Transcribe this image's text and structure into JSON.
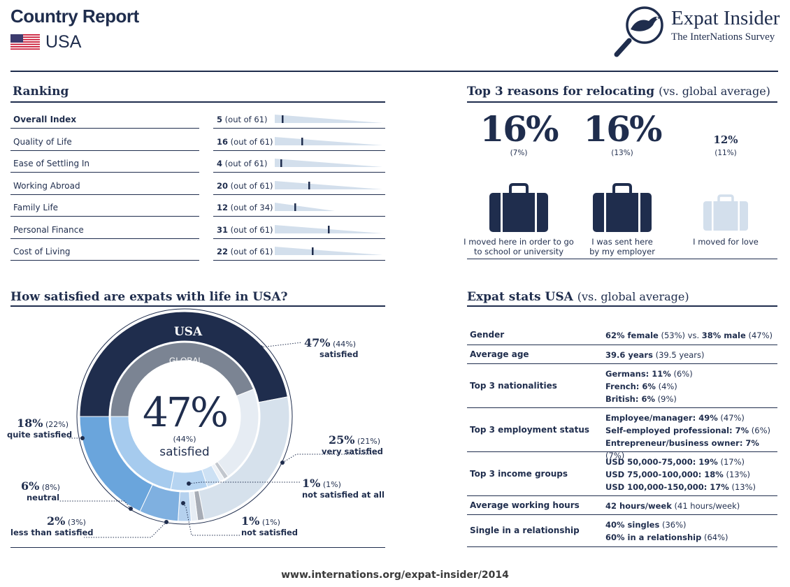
{
  "header": {
    "title": "Country Report",
    "country": "USA",
    "brand_title": "Expat Insider",
    "brand_subtitle": "The InterNations Survey"
  },
  "ranking": {
    "title": "Ranking",
    "rows": [
      {
        "label": "Overall Index",
        "rank": "5",
        "total_text": "(out of 61)",
        "rank_num": 5,
        "total": 61,
        "bold": true
      },
      {
        "label": "Quality of Life",
        "rank": "16",
        "total_text": "(out of 61)",
        "rank_num": 16,
        "total": 61
      },
      {
        "label": "Ease of Settling In",
        "rank": "4",
        "total_text": "(out of 61)",
        "rank_num": 4,
        "total": 61
      },
      {
        "label": "Working Abroad",
        "rank": "20",
        "total_text": "(out of 61)",
        "rank_num": 20,
        "total": 61
      },
      {
        "label": "Family Life",
        "rank": "12",
        "total_text": "(out of 34)",
        "rank_num": 12,
        "total": 34
      },
      {
        "label": "Personal Finance",
        "rank": "31",
        "total_text": "(out of 61)",
        "rank_num": 31,
        "total": 61
      },
      {
        "label": "Cost of Living",
        "rank": "22",
        "total_text": "(out of 61)",
        "rank_num": 22,
        "total": 61
      }
    ]
  },
  "reasons": {
    "title": "Top 3 reasons for relocating",
    "title_sub": "(vs. global average)",
    "items": [
      {
        "pct": "16%",
        "avg": "(7%)",
        "label_1": "I moved here in order to go",
        "label_2": "to school or university",
        "color": "#1f2d4d"
      },
      {
        "pct": "16%",
        "avg": "(13%)",
        "label_1": "I was sent here",
        "label_2": "by my employer",
        "color": "#1f2d4d"
      },
      {
        "pct": "12%",
        "avg": "(11%)",
        "label_1": "I moved for love",
        "label_2": "",
        "color": "#d3dfec"
      }
    ]
  },
  "satisfaction": {
    "title": "How satisfied are expats with life in USA?",
    "ring_outer_label": "USA",
    "ring_inner_label": "GLOBAL",
    "center_pct": "47%",
    "center_avg": "(44%)",
    "center_label": "satisfied",
    "labels": {
      "satisfied": {
        "pct": "47%",
        "avg": "(44%)",
        "name": "satisfied"
      },
      "very_satisfied": {
        "pct": "25%",
        "avg": "(21%)",
        "name": "very satisfied"
      },
      "not_at_all": {
        "pct": "1%",
        "avg": "(1%)",
        "name": "not satisfied at all"
      },
      "not_satisfied": {
        "pct": "1%",
        "avg": "(1%)",
        "name": "not satisfied"
      },
      "less_than": {
        "pct": "2%",
        "avg": "(3%)",
        "name": "less than satisfied"
      },
      "neutral": {
        "pct": "6%",
        "avg": "(8%)",
        "name": "neutral"
      },
      "quite": {
        "pct": "18%",
        "avg": "(22%)",
        "name": "quite satisfied"
      }
    }
  },
  "chart_data": {
    "type": "pie",
    "title": "How satisfied are expats with life in USA?",
    "categories": [
      "satisfied",
      "very satisfied",
      "not satisfied at all",
      "not satisfied",
      "less than satisfied",
      "neutral",
      "quite satisfied"
    ],
    "series": [
      {
        "name": "USA",
        "values": [
          47,
          25,
          1,
          1,
          2,
          6,
          18
        ],
        "colors": [
          "#1f2d4d",
          "#d6e1ec",
          "#a7acb5",
          "#e7edf4",
          "#b5d1ee",
          "#7fb0e0",
          "#6aa5dc"
        ]
      },
      {
        "name": "GLOBAL",
        "values": [
          44,
          21,
          1,
          1,
          3,
          8,
          22
        ],
        "colors": [
          "#7b8493",
          "#e6ecf3",
          "#c2c7ce",
          "#eef2f7",
          "#cde1f4",
          "#b6d4f1",
          "#a6cbee"
        ]
      }
    ]
  },
  "stats": {
    "title": "Expat stats USA",
    "title_sub": "(vs. global average)",
    "rows": [
      {
        "label": "Gender",
        "lines": [
          {
            "b": "62% female",
            "t": " (53%) vs. "
          },
          {
            "b": "38% male",
            "t": " (47%)"
          }
        ],
        "inline": true
      },
      {
        "label": "Average age",
        "lines": [
          {
            "b": "39.6 years",
            "t": " (39.5 years)"
          }
        ]
      },
      {
        "label": "Top 3 nationalities",
        "lines": [
          {
            "b": "Germans: 11%",
            "t": " (6%)"
          },
          {
            "b": "French: 6%",
            "t": " (4%)"
          },
          {
            "b": "British: 6%",
            "t": " (9%)"
          }
        ]
      },
      {
        "label": "Top 3 employment status",
        "lines": [
          {
            "b": "Employee/manager: 49%",
            "t": " (47%)"
          },
          {
            "b": "Self-employed professional: 7%",
            "t": " (6%)"
          },
          {
            "b": "Entrepreneur/business owner: 7%",
            "t": " (7%)"
          }
        ]
      },
      {
        "label": "Top 3 income groups",
        "lines": [
          {
            "b": "USD 50,000-75,000: 19%",
            "t": " (17%)"
          },
          {
            "b": "USD 75,000-100,000: 18%",
            "t": " (13%)"
          },
          {
            "b": "USD 100,000-150,000: 17%",
            "t": " (13%)"
          }
        ]
      },
      {
        "label": "Average working hours",
        "lines": [
          {
            "b": "42 hours/week",
            "t": " (41 hours/week)"
          }
        ]
      },
      {
        "label": "Single in a relationship",
        "lines": [
          {
            "b": "40% singles",
            "t": " (36%)"
          },
          {
            "b": "60% in a relationship",
            "t": " (64%)"
          }
        ]
      }
    ]
  },
  "footer": {
    "url": "www.internations.org/expat-insider/2014"
  },
  "colors": {
    "navy": "#1f2d4d",
    "light_bar": "#d3dfec"
  },
  "icons": {
    "flag": "us-flag-icon",
    "brand": "magnifier-bird-icon",
    "reason": "suitcase-icon"
  }
}
